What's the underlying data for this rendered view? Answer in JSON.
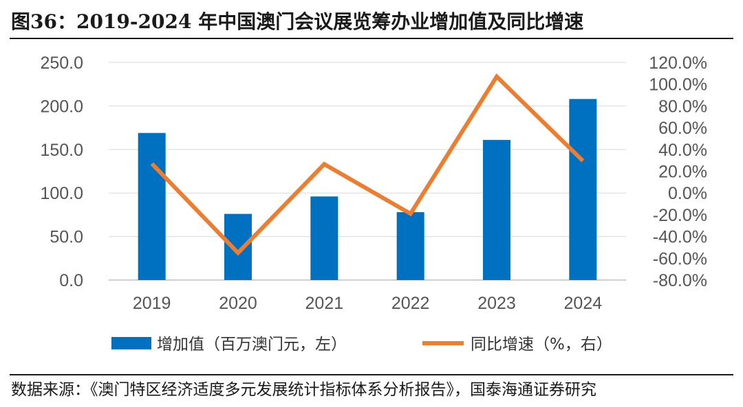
{
  "title": "图36：2019-2024 年中国澳门会议展览筹办业增加值及同比增速",
  "source": "数据来源：《澳门特区经济适度多元发展统计指标体系分析报告》，国泰海通证券研究",
  "colors": {
    "bar": "#0070C0",
    "line": "#ED7D31",
    "grid": "#D9D9D9",
    "axis": "#BFBFBF"
  },
  "chart_data": {
    "type": "bar+line",
    "categories": [
      "2019",
      "2020",
      "2021",
      "2022",
      "2023",
      "2024"
    ],
    "series": [
      {
        "name": "增加值（百万澳门元，左）",
        "type": "bar",
        "axis": "left",
        "values": [
          169,
          76,
          96,
          78,
          161,
          208
        ]
      },
      {
        "name": "同比增速（%，右）",
        "type": "line",
        "axis": "right",
        "values": [
          27.0,
          -55.0,
          26.5,
          -19.0,
          107.0,
          29.5
        ]
      }
    ],
    "left_axis": {
      "min": 0,
      "max": 250,
      "step": 50,
      "ticks": [
        "0.0",
        "50.0",
        "100.0",
        "150.0",
        "200.0",
        "250.0"
      ]
    },
    "right_axis": {
      "min": -80,
      "max": 120,
      "step": 20,
      "ticks": [
        "-80.0%",
        "-60.0%",
        "-40.0%",
        "-20.0%",
        "0.0%",
        "20.0%",
        "40.0%",
        "60.0%",
        "80.0%",
        "100.0%",
        "120.0%"
      ]
    },
    "grid": true,
    "legend_position": "bottom"
  }
}
